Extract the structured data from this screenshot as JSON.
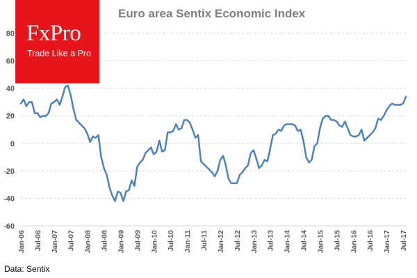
{
  "brand": {
    "name": "FxPro",
    "tagline": "Trade Like a Pro",
    "color": "#e8141c"
  },
  "source_note": "Data: Sentix",
  "chart_data": {
    "type": "line",
    "title": "Euro area Sentix Economic Index",
    "xlabel": "",
    "ylabel": "",
    "ylim": [
      -60,
      80
    ],
    "yticks": [
      -60,
      -40,
      -20,
      0,
      20,
      40,
      60,
      80
    ],
    "grid": true,
    "line_color": "#4f81bd",
    "x_tick_labels": [
      "Jan-06",
      "Jul-06",
      "Jan-07",
      "Jul-07",
      "Jan-08",
      "Jul-08",
      "Jan-09",
      "Jul-09",
      "Jan-10",
      "Jul-10",
      "Jan-11",
      "Jul-11",
      "Jan-12",
      "Jul-12",
      "Jan-13",
      "Jul-13",
      "Jan-14",
      "Jul-14",
      "Jan-15",
      "Jul-15",
      "Jan-16",
      "Jul-16",
      "Jan-17",
      "Jul-17"
    ],
    "x_start": "Jan-06",
    "x_frequency": "monthly",
    "series": [
      {
        "values": [
          29,
          32,
          27,
          30,
          30,
          22,
          22,
          19,
          20,
          20,
          22,
          29,
          30,
          32,
          28,
          34,
          41,
          42,
          35,
          25,
          17,
          15,
          13,
          11,
          7,
          1,
          5,
          4,
          6,
          -10,
          -18,
          -23,
          -32,
          -38,
          -42,
          -35,
          -36,
          -42,
          -35,
          -34,
          -27,
          -31,
          -17,
          -14,
          -12,
          -7,
          -5,
          -3,
          -8,
          -6,
          2,
          -6,
          -5,
          8,
          8,
          9,
          14,
          10,
          11,
          17,
          17,
          15,
          10,
          4,
          6,
          -13,
          -15,
          -17,
          -19,
          -21,
          -24,
          -20,
          -12,
          -9,
          -16,
          -26,
          -29,
          -29,
          -29,
          -23,
          -21,
          -18,
          -16,
          -7,
          -5,
          -11,
          -18,
          -16,
          -12,
          -13,
          -4,
          6,
          7,
          10,
          9,
          13,
          14,
          14,
          14,
          13,
          9,
          10,
          2,
          -10,
          -14,
          -12,
          -2,
          0,
          11,
          18,
          20,
          20,
          17,
          17,
          16,
          13,
          12,
          16,
          11,
          6,
          5,
          5,
          6,
          10,
          2,
          4,
          6,
          8,
          11,
          18,
          17,
          20,
          24,
          27,
          29,
          28,
          28,
          28,
          29,
          34
        ]
      }
    ]
  }
}
